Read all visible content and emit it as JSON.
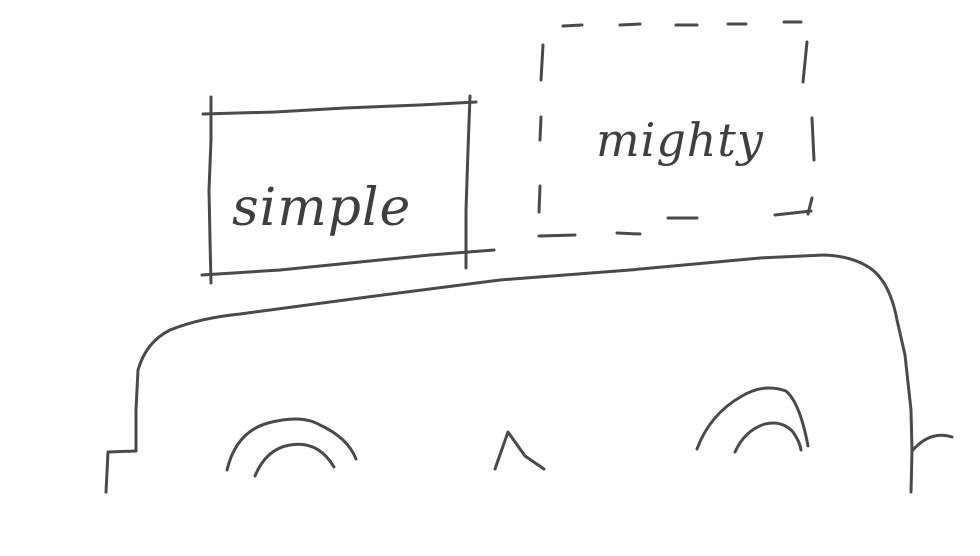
{
  "boxes": {
    "simple_label": "simple",
    "mighty_label": "mighty"
  },
  "colors": {
    "stroke": "#4a4a4a",
    "background": "#ffffff"
  }
}
